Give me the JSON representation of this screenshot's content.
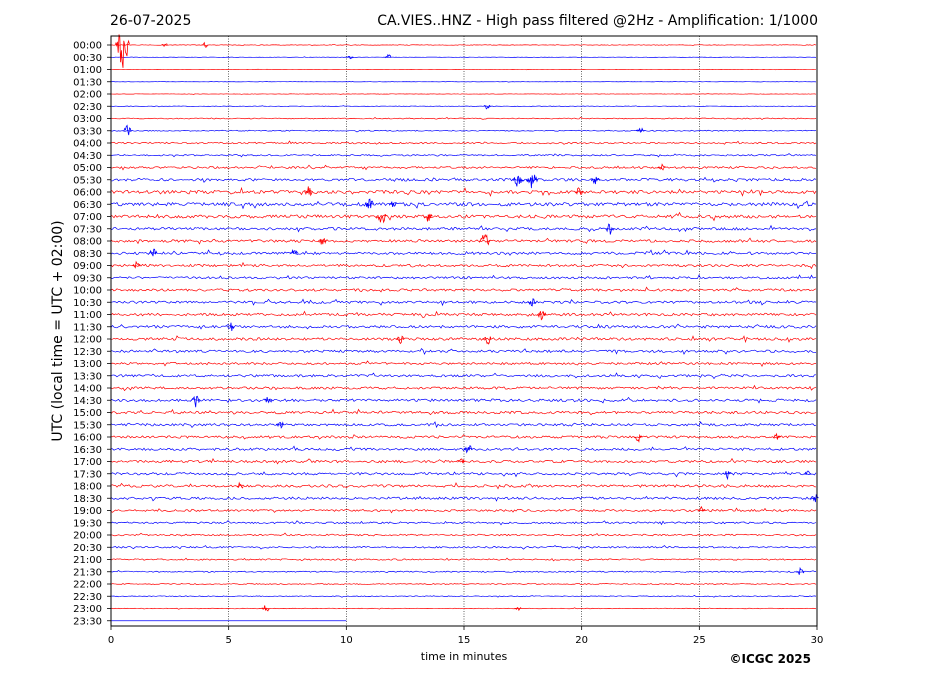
{
  "header": {
    "date": "26-07-2025",
    "title": "CA.VIES..HNZ - High pass filtered @2Hz - Amplification: 1/1000"
  },
  "footer": {
    "copyright": "©ICGC 2025"
  },
  "colors": {
    "even_rows": "#ff0000",
    "odd_rows": "#0000ff",
    "grid": "#000000"
  },
  "chart_data": {
    "type": "line",
    "subtype": "helicorder",
    "xlabel": "time in minutes",
    "ylabel": "UTC (local time = UTC + 02:00)",
    "xlim": [
      0,
      30
    ],
    "x_ticks": [
      0,
      5,
      10,
      15,
      20,
      25,
      30
    ],
    "x_tick_labels": [
      "0",
      "5",
      "10",
      "15",
      "20",
      "25",
      "30"
    ],
    "vertical_gridlines_minutes": [
      5,
      10,
      15,
      20,
      25
    ],
    "row_labels": [
      "00:00",
      "00:30",
      "01:00",
      "01:30",
      "02:00",
      "02:30",
      "03:00",
      "03:30",
      "04:00",
      "04:30",
      "05:00",
      "05:30",
      "06:00",
      "06:30",
      "07:00",
      "07:30",
      "08:00",
      "08:30",
      "09:00",
      "09:30",
      "10:00",
      "10:30",
      "11:00",
      "11:30",
      "12:00",
      "12:30",
      "13:00",
      "13:30",
      "14:00",
      "14:30",
      "15:00",
      "15:30",
      "16:00",
      "16:30",
      "17:00",
      "17:30",
      "18:00",
      "18:30",
      "19:00",
      "19:30",
      "20:00",
      "20:30",
      "21:00",
      "21:30",
      "22:00",
      "22:30",
      "23:00",
      "23:30"
    ],
    "row_noise_level": [
      0.3,
      0.2,
      0.1,
      0.15,
      0.2,
      0.25,
      0.5,
      0.5,
      0.8,
      0.7,
      1.0,
      1.3,
      1.6,
      1.7,
      1.6,
      1.3,
      1.3,
      1.3,
      1.2,
      1.1,
      1.2,
      1.2,
      1.3,
      1.3,
      1.3,
      1.2,
      1.1,
      1.2,
      1.2,
      1.3,
      1.3,
      1.2,
      1.2,
      1.2,
      1.2,
      1.2,
      1.3,
      1.2,
      1.0,
      0.9,
      0.8,
      0.8,
      0.7,
      0.6,
      0.5,
      0.4,
      0.3,
      0.0
    ],
    "row_data_end_minutes": [
      30,
      30,
      30,
      30,
      30,
      30,
      30,
      30,
      30,
      30,
      30,
      30,
      30,
      30,
      30,
      30,
      30,
      30,
      30,
      30,
      30,
      30,
      30,
      30,
      30,
      30,
      30,
      30,
      30,
      30,
      30,
      30,
      30,
      30,
      30,
      30,
      30,
      30,
      30,
      30,
      30,
      30,
      30,
      30,
      30,
      30,
      30,
      10
    ],
    "events": [
      {
        "row": 0,
        "minute": 0.5,
        "amplitude": 30
      },
      {
        "row": 0,
        "minute": 2.3,
        "amplitude": 3
      },
      {
        "row": 0,
        "minute": 4.0,
        "amplitude": 3
      },
      {
        "row": 1,
        "minute": 10.2,
        "amplitude": 3
      },
      {
        "row": 1,
        "minute": 11.8,
        "amplitude": 3
      },
      {
        "row": 5,
        "minute": 16.0,
        "amplitude": 4
      },
      {
        "row": 7,
        "minute": 0.7,
        "amplitude": 6
      },
      {
        "row": 7,
        "minute": 22.5,
        "amplitude": 5
      },
      {
        "row": 10,
        "minute": 23.4,
        "amplitude": 4
      },
      {
        "row": 11,
        "minute": 17.3,
        "amplitude": 8
      },
      {
        "row": 11,
        "minute": 17.9,
        "amplitude": 9
      },
      {
        "row": 11,
        "minute": 20.6,
        "amplitude": 6
      },
      {
        "row": 12,
        "minute": 8.4,
        "amplitude": 6
      },
      {
        "row": 12,
        "minute": 19.9,
        "amplitude": 5
      },
      {
        "row": 13,
        "minute": 11.0,
        "amplitude": 7
      },
      {
        "row": 13,
        "minute": 12.0,
        "amplitude": 5
      },
      {
        "row": 14,
        "minute": 11.5,
        "amplitude": 8
      },
      {
        "row": 14,
        "minute": 13.5,
        "amplitude": 6
      },
      {
        "row": 15,
        "minute": 21.2,
        "amplitude": 6
      },
      {
        "row": 16,
        "minute": 9.0,
        "amplitude": 5
      },
      {
        "row": 16,
        "minute": 15.9,
        "amplitude": 9
      },
      {
        "row": 17,
        "minute": 1.8,
        "amplitude": 6
      },
      {
        "row": 17,
        "minute": 7.8,
        "amplitude": 6
      },
      {
        "row": 18,
        "minute": 1.1,
        "amplitude": 5
      },
      {
        "row": 21,
        "minute": 17.9,
        "amplitude": 5
      },
      {
        "row": 22,
        "minute": 18.3,
        "amplitude": 6
      },
      {
        "row": 23,
        "minute": 5.1,
        "amplitude": 5
      },
      {
        "row": 24,
        "minute": 12.3,
        "amplitude": 5
      },
      {
        "row": 24,
        "minute": 16.0,
        "amplitude": 6
      },
      {
        "row": 29,
        "minute": 3.6,
        "amplitude": 7
      },
      {
        "row": 29,
        "minute": 6.7,
        "amplitude": 5
      },
      {
        "row": 31,
        "minute": 7.2,
        "amplitude": 5
      },
      {
        "row": 32,
        "minute": 22.4,
        "amplitude": 5
      },
      {
        "row": 32,
        "minute": 28.3,
        "amplitude": 4
      },
      {
        "row": 33,
        "minute": 15.2,
        "amplitude": 6
      },
      {
        "row": 34,
        "minute": 14.9,
        "amplitude": 4
      },
      {
        "row": 35,
        "minute": 26.2,
        "amplitude": 5
      },
      {
        "row": 35,
        "minute": 29.6,
        "amplitude": 4
      },
      {
        "row": 36,
        "minute": 5.5,
        "amplitude": 4
      },
      {
        "row": 37,
        "minute": 29.9,
        "amplitude": 5
      },
      {
        "row": 38,
        "minute": 25.1,
        "amplitude": 4
      },
      {
        "row": 43,
        "minute": 29.3,
        "amplitude": 4
      },
      {
        "row": 46,
        "minute": 6.6,
        "amplitude": 5
      },
      {
        "row": 46,
        "minute": 17.3,
        "amplitude": 3
      }
    ]
  }
}
